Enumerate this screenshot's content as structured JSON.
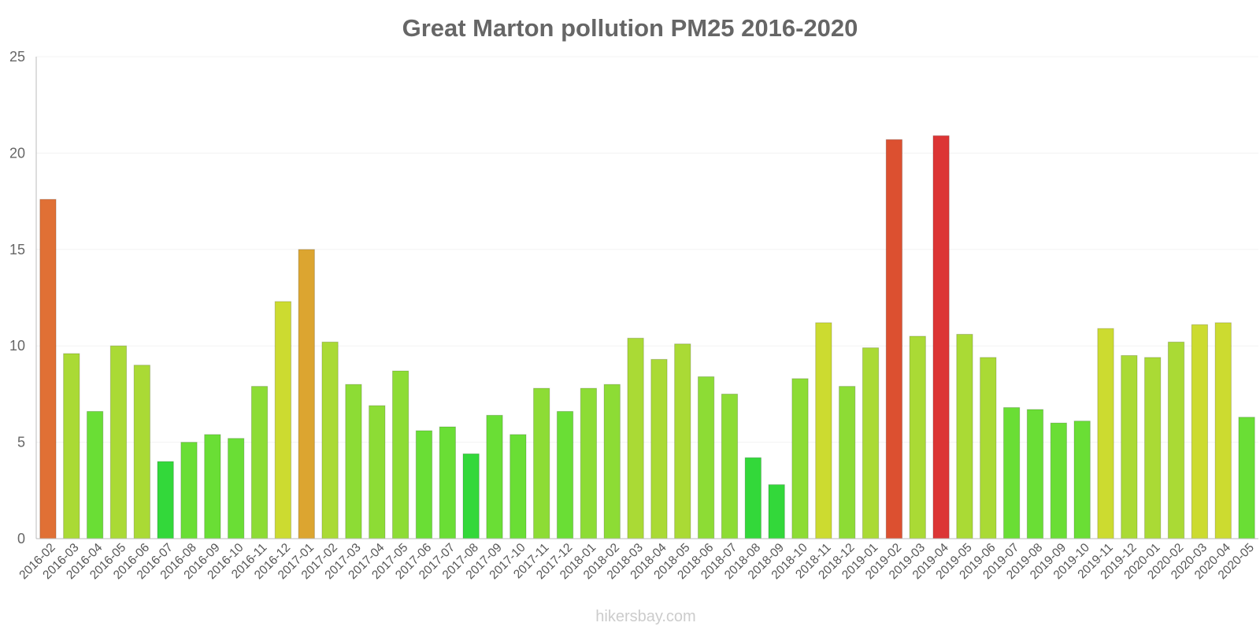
{
  "chart_data": {
    "type": "bar",
    "title": "Great Marton pollution PM25 2016-2020",
    "xlabel": "",
    "ylabel": "",
    "ylim": [
      0,
      25
    ],
    "yticks": [
      "0",
      "5",
      "10",
      "15",
      "20",
      "25"
    ],
    "grid": true,
    "categories": [
      "2016-02",
      "2016-03",
      "2016-04",
      "2016-05",
      "2016-06",
      "2016-07",
      "2016-08",
      "2016-09",
      "2016-10",
      "2016-11",
      "2016-12",
      "2017-01",
      "2017-02",
      "2017-03",
      "2017-04",
      "2017-05",
      "2017-06",
      "2017-07",
      "2017-08",
      "2017-09",
      "2017-10",
      "2017-11",
      "2017-12",
      "2018-01",
      "2018-02",
      "2018-03",
      "2018-04",
      "2018-05",
      "2018-06",
      "2018-07",
      "2018-08",
      "2018-09",
      "2018-10",
      "2018-11",
      "2018-12",
      "2019-01",
      "2019-02",
      "2019-03",
      "2019-04",
      "2019-05",
      "2019-06",
      "2019-07",
      "2019-08",
      "2019-09",
      "2019-10",
      "2019-11",
      "2019-12",
      "2020-01",
      "2020-02",
      "2020-03",
      "2020-04",
      "2020-05"
    ],
    "values": [
      17.6,
      9.6,
      6.6,
      10,
      9,
      4,
      5,
      5.4,
      5.2,
      7.9,
      12.3,
      15,
      10.2,
      8,
      6.9,
      8.7,
      5.6,
      5.8,
      4.4,
      6.4,
      5.4,
      7.8,
      6.6,
      7.8,
      8,
      10.4,
      9.3,
      10.1,
      8.4,
      7.5,
      4.2,
      2.8,
      8.3,
      11.2,
      7.9,
      9.9,
      20.7,
      10.5,
      20.9,
      10.6,
      9.4,
      6.8,
      6.7,
      6,
      6.1,
      10.9,
      9.5,
      9.4,
      10.2,
      11.1,
      11.2,
      6.3
    ],
    "colors": [
      "#e07035",
      "#aada35",
      "#6ade35",
      "#aada35",
      "#aada35",
      "#33d83a",
      "#6ade35",
      "#6ade35",
      "#6ade35",
      "#8ddc35",
      "#ccdb30",
      "#dca530",
      "#aada35",
      "#8ddc35",
      "#8ddc35",
      "#8ddc35",
      "#6ade35",
      "#6ade35",
      "#33d83a",
      "#6ade35",
      "#6ade35",
      "#8ddc35",
      "#6ade35",
      "#8ddc35",
      "#8ddc35",
      "#aada35",
      "#aada35",
      "#aada35",
      "#8ddc35",
      "#8ddc35",
      "#33d83a",
      "#33d83a",
      "#8ddc35",
      "#ccdb30",
      "#8ddc35",
      "#aada35",
      "#dc5030",
      "#aada35",
      "#dc3535",
      "#aada35",
      "#aada35",
      "#6ade35",
      "#6ade35",
      "#6ade35",
      "#6ade35",
      "#ccdb30",
      "#aada35",
      "#aada35",
      "#aada35",
      "#ccdb30",
      "#ccdb30",
      "#6ade35"
    ]
  },
  "watermark": "hikersbay.com"
}
